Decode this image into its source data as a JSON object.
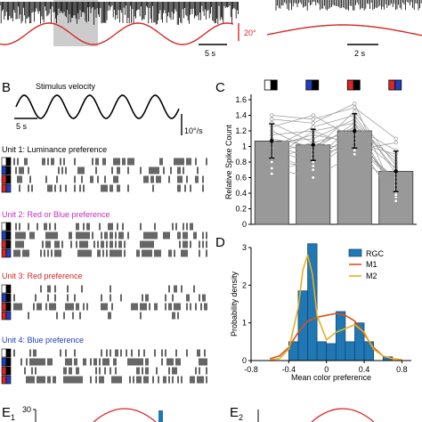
{
  "panels": {
    "A": {
      "scalebar_left": "5 s",
      "scalebar_right": "2 s",
      "amplitude": "20°",
      "trace_color": "#d62728"
    },
    "B": {
      "label": "B",
      "stimulus_title": "Stimulus velocity",
      "scalebar_time": "5 s",
      "scalebar_velocity": "10°/s",
      "units": [
        {
          "title": "Unit 1: Luminance preference",
          "color": "#000000"
        },
        {
          "title": "Unit 2: Red or Blue preference",
          "color": "#c030c0"
        },
        {
          "title": "Unit 3: Red preference",
          "color": "#d62728"
        },
        {
          "title": "Unit 4: Blue preference",
          "color": "#1f3fbf"
        }
      ],
      "color_keys": [
        "white/black",
        "blue/black",
        "red/black",
        "red/blue"
      ]
    },
    "E": {
      "label1": "E",
      "sub1": "1",
      "label2": "E",
      "sub2": "2",
      "ytick_top": "30"
    }
  },
  "chart_data": [
    {
      "panel": "C",
      "type": "bar",
      "ylabel": "Relative Spike Count",
      "ylim": [
        0,
        1.6
      ],
      "yticks": [
        "0",
        "0.2",
        "0.4",
        "0.6",
        "0.8",
        "1",
        "1.2",
        "1.4",
        "1.6"
      ],
      "categories": [
        "white/black",
        "blue/black",
        "red/black",
        "red/blue"
      ],
      "values": [
        1.07,
        1.02,
        1.2,
        0.68
      ],
      "errors": [
        0.22,
        0.2,
        0.22,
        0.26
      ],
      "bar_color": "#999999",
      "n_units": 20,
      "units_lines": [
        [
          1.35,
          1.3,
          1.55,
          0.35
        ],
        [
          1.3,
          1.05,
          1.2,
          0.85
        ],
        [
          1.25,
          1.4,
          1.1,
          0.55
        ],
        [
          1.2,
          0.95,
          1.45,
          0.75
        ],
        [
          1.15,
          1.2,
          1.3,
          0.4
        ],
        [
          1.1,
          1.0,
          1.25,
          0.95
        ],
        [
          1.08,
          0.9,
          1.0,
          0.6
        ],
        [
          1.05,
          1.1,
          1.35,
          0.7
        ],
        [
          1.02,
          0.85,
          1.15,
          0.5
        ],
        [
          1.0,
          1.15,
          1.05,
          0.9
        ],
        [
          0.98,
          1.25,
          1.4,
          0.65
        ],
        [
          0.95,
          0.8,
          1.2,
          0.45
        ],
        [
          0.92,
          1.05,
          0.95,
          1.05
        ],
        [
          0.9,
          0.7,
          1.1,
          0.3
        ],
        [
          0.88,
          0.95,
          1.3,
          0.8
        ],
        [
          0.85,
          1.2,
          1.0,
          0.55
        ],
        [
          0.8,
          0.75,
          1.15,
          0.72
        ],
        [
          0.72,
          0.6,
          0.9,
          0.5
        ],
        [
          0.65,
          0.85,
          1.25,
          0.38
        ],
        [
          1.4,
          1.35,
          1.5,
          1.1
        ]
      ]
    },
    {
      "panel": "D",
      "type": "bar",
      "xlabel": "Mean color preference",
      "ylabel": "Probability density",
      "xlim": [
        -0.8,
        0.9
      ],
      "ylim": [
        0,
        3
      ],
      "xticks": [
        "-0.8",
        "-0.4",
        "0",
        "0.4",
        "0.8"
      ],
      "yticks": [
        "0",
        "1",
        "2",
        "3"
      ],
      "histogram": {
        "name": "RGC",
        "color": "#1f77b4",
        "bin_edges": [
          -0.4,
          -0.3,
          -0.2,
          -0.1,
          0.0,
          0.1,
          0.2,
          0.3,
          0.4,
          0.5,
          0.6,
          0.7,
          0.8
        ],
        "density": [
          0.5,
          1.85,
          3.1,
          0.5,
          0.45,
          1.3,
          0.5,
          1.0,
          0.5,
          0.0,
          0.1,
          0.0
        ]
      },
      "series": [
        {
          "name": "M1",
          "color": "#d9541a",
          "x": [
            -0.6,
            -0.5,
            -0.4,
            -0.3,
            -0.2,
            -0.1,
            0.0,
            0.1,
            0.2,
            0.3,
            0.4,
            0.5,
            0.6,
            0.7,
            0.8
          ],
          "y": [
            0.05,
            0.12,
            0.35,
            0.75,
            1.05,
            1.15,
            1.2,
            1.25,
            1.2,
            1.05,
            0.7,
            0.35,
            0.12,
            0.05,
            0.02
          ]
        },
        {
          "name": "M2",
          "color": "#e6b020",
          "x": [
            -0.6,
            -0.5,
            -0.4,
            -0.3,
            -0.25,
            -0.2,
            -0.15,
            -0.1,
            0.0,
            0.1,
            0.2,
            0.3,
            0.4,
            0.5,
            0.6,
            0.7,
            0.8
          ],
          "y": [
            0.02,
            0.05,
            0.3,
            1.4,
            2.4,
            2.8,
            2.3,
            1.2,
            0.55,
            0.75,
            0.85,
            0.95,
            0.75,
            0.3,
            0.12,
            0.05,
            0.02
          ]
        }
      ]
    }
  ]
}
